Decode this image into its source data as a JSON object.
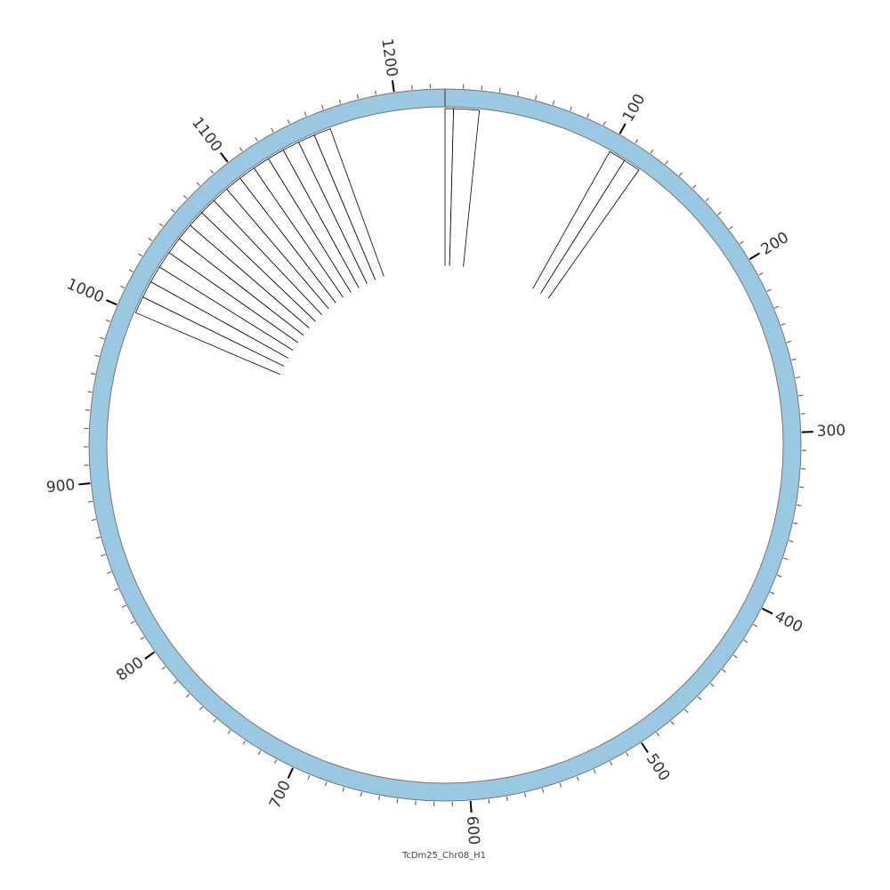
{
  "title": "TcDm25_Chr08_H1",
  "chromosome": {
    "name": "TcDm25_Chr08_H1",
    "length": 1228,
    "fill_color": "#9ac7e2",
    "stroke_color": "#777777"
  },
  "ticks": {
    "minor_spacing": 10,
    "major_spacing": 100,
    "labels": [
      "100",
      "200",
      "300",
      "400",
      "500",
      "600",
      "700",
      "800",
      "900",
      "1000",
      "1100",
      "1200"
    ]
  },
  "tracks": {
    "bar_color": "#000000",
    "bar_fill": "#ffffff",
    "inner_level": 0.53,
    "bars": [
      {
        "start": 0,
        "end": 5
      },
      {
        "start": 5,
        "end": 20
      },
      {
        "start": 100,
        "end": 110
      },
      {
        "start": 110,
        "end": 120
      },
      {
        "start": 1000,
        "end": 1010
      },
      {
        "start": 1010,
        "end": 1020
      },
      {
        "start": 1020,
        "end": 1030
      },
      {
        "start": 1030,
        "end": 1040
      },
      {
        "start": 1040,
        "end": 1050
      },
      {
        "start": 1050,
        "end": 1060
      },
      {
        "start": 1060,
        "end": 1070
      },
      {
        "start": 1070,
        "end": 1080
      },
      {
        "start": 1080,
        "end": 1090
      },
      {
        "start": 1090,
        "end": 1100
      },
      {
        "start": 1100,
        "end": 1110
      },
      {
        "start": 1110,
        "end": 1120
      },
      {
        "start": 1120,
        "end": 1130
      },
      {
        "start": 1130,
        "end": 1140
      },
      {
        "start": 1140,
        "end": 1150
      },
      {
        "start": 1150,
        "end": 1160
      }
    ]
  }
}
